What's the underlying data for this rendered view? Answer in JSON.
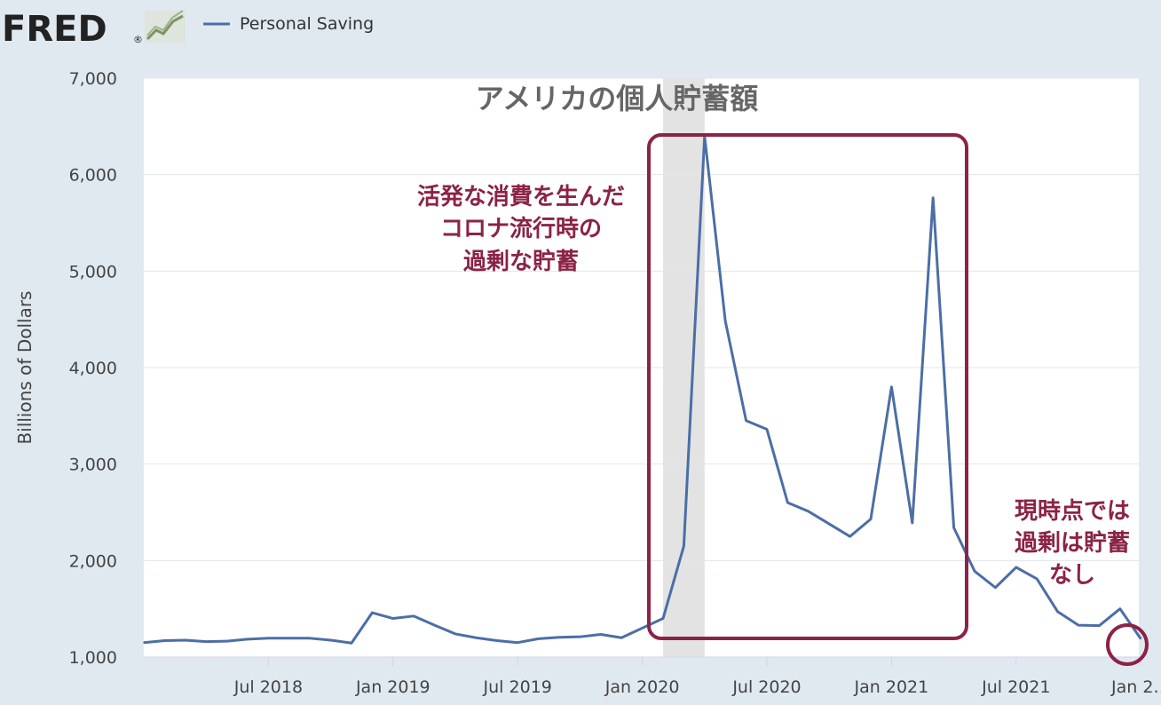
{
  "header": {
    "logo_text": "FRED",
    "logo_registered": "®",
    "logo_icon": "line-chart-icon",
    "legend_label": "Personal Saving",
    "legend_color": "#4c6ea6"
  },
  "colors": {
    "background": "#e1e9f0",
    "plot_background": "#ffffff",
    "series": "#4c6ea6",
    "recession": "#e3e3e3",
    "annotation": "#8b2347",
    "title": "#666666"
  },
  "chart_data": {
    "type": "line",
    "title": "アメリカの個人貯蓄額",
    "ylabel": "Billions of Dollars",
    "xlabel": "",
    "ylim": [
      1000,
      7000
    ],
    "yticks": [
      1000,
      2000,
      3000,
      4000,
      5000,
      6000,
      7000
    ],
    "ytick_labels": [
      "1,000",
      "2,000",
      "3,000",
      "4,000",
      "5,000",
      "6,000",
      "7,000"
    ],
    "xlim": [
      "2018-01",
      "2022-01"
    ],
    "xticks": [
      "2018-07",
      "2019-01",
      "2019-07",
      "2020-01",
      "2020-07",
      "2021-01",
      "2021-07",
      "2022-01"
    ],
    "xtick_labels": [
      "Jul 2018",
      "Jan 2019",
      "Jul 2019",
      "Jan 2020",
      "Jul 2020",
      "Jan 2021",
      "Jul 2021",
      "Jan 2…"
    ],
    "grid": true,
    "legend": "top-left",
    "recession_shading": [
      "2020-02",
      "2020-04"
    ],
    "series": [
      {
        "name": "Personal Saving",
        "x": [
          "2018-01",
          "2018-02",
          "2018-03",
          "2018-04",
          "2018-05",
          "2018-06",
          "2018-07",
          "2018-08",
          "2018-09",
          "2018-10",
          "2018-11",
          "2018-12",
          "2019-01",
          "2019-02",
          "2019-03",
          "2019-04",
          "2019-05",
          "2019-06",
          "2019-07",
          "2019-08",
          "2019-09",
          "2019-10",
          "2019-11",
          "2019-12",
          "2020-01",
          "2020-02",
          "2020-03",
          "2020-04",
          "2020-05",
          "2020-06",
          "2020-07",
          "2020-08",
          "2020-09",
          "2020-10",
          "2020-11",
          "2020-12",
          "2021-01",
          "2021-02",
          "2021-03",
          "2021-04",
          "2021-05",
          "2021-06",
          "2021-07",
          "2021-08",
          "2021-09",
          "2021-10",
          "2021-11",
          "2021-12",
          "2022-01"
        ],
        "values": [
          1150,
          1170,
          1175,
          1160,
          1165,
          1185,
          1195,
          1195,
          1195,
          1175,
          1145,
          1460,
          1400,
          1425,
          1330,
          1240,
          1200,
          1170,
          1150,
          1190,
          1205,
          1210,
          1235,
          1200,
          1300,
          1400,
          2150,
          6400,
          4480,
          3450,
          3360,
          2600,
          2510,
          2380,
          2250,
          2430,
          3800,
          2390,
          5760,
          2340,
          1890,
          1720,
          1930,
          1810,
          1470,
          1330,
          1325,
          1500,
          1190
        ]
      }
    ],
    "annotations": [
      {
        "text": [
          "活発な消費を生んだ",
          "コロナ流行時の",
          "過剰な貯蓄"
        ]
      },
      {
        "text": [
          "現時点では",
          "過剰は貯蓄",
          "なし"
        ]
      }
    ]
  }
}
